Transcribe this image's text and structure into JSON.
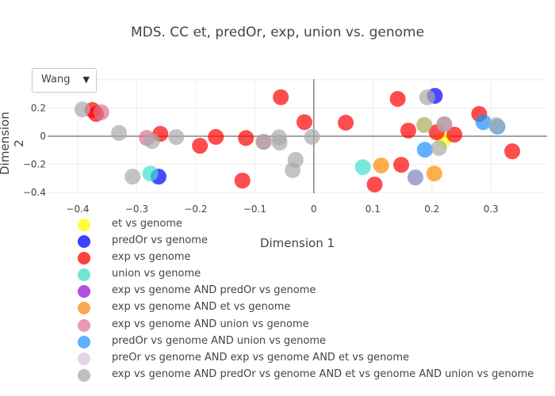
{
  "dropdown": {
    "selected": "Wang",
    "caret": "▼"
  },
  "chart_data": {
    "type": "scatter",
    "title": "MDS. CC et, predOr, exp, union vs. genome",
    "xlabel": "Dimension 1",
    "ylabel": "Dimension 2",
    "xlim": [
      -0.451,
      0.395
    ],
    "ylim": [
      -0.405,
      0.405
    ],
    "xticks": [
      -0.4,
      -0.3,
      -0.2,
      -0.1,
      0,
      0.1,
      0.2,
      0.3
    ],
    "xtick_labels": [
      "−0.4",
      "−0.3",
      "−0.2",
      "−0.1",
      "0",
      "0.1",
      "0.2",
      "0.3"
    ],
    "yticks": [
      -0.4,
      -0.2,
      0,
      0.2
    ],
    "ytick_labels": [
      "−0.4",
      "−0.2",
      "0",
      "0.2"
    ],
    "grid": true,
    "legend_position": "bottom-left",
    "series": [
      {
        "name": "et vs genome",
        "color": "#ffff00",
        "legend_color": "#ffff40",
        "points": [
          [
            0.187,
            0.08
          ],
          [
            0.219,
            -0.028
          ]
        ]
      },
      {
        "name": "predOr vs genome",
        "color": "#0000ff",
        "legend_color": "#4040ff",
        "points": [
          [
            -0.263,
            -0.287
          ],
          [
            0.205,
            0.287
          ]
        ]
      },
      {
        "name": "exp vs genome",
        "color": "#ff0000",
        "legend_color": "#ff4040",
        "points": [
          [
            -0.375,
            0.186
          ],
          [
            -0.369,
            0.158
          ],
          [
            -0.26,
            0.017
          ],
          [
            -0.193,
            -0.068
          ],
          [
            -0.166,
            -0.005
          ],
          [
            -0.115,
            -0.013
          ],
          [
            -0.121,
            -0.315
          ],
          [
            -0.056,
            0.277
          ],
          [
            -0.016,
            0.1
          ],
          [
            0.054,
            0.096
          ],
          [
            0.142,
            0.265
          ],
          [
            0.16,
            0.04
          ],
          [
            0.208,
            0.028
          ],
          [
            0.238,
            0.011
          ],
          [
            0.148,
            -0.203
          ],
          [
            0.103,
            -0.343
          ],
          [
            0.28,
            0.158
          ],
          [
            0.336,
            -0.107
          ]
        ]
      },
      {
        "name": "union vs genome",
        "color": "#40e0d0",
        "legend_color": "#70e4d8",
        "points": [
          [
            -0.277,
            -0.265
          ],
          [
            0.083,
            -0.22
          ]
        ]
      },
      {
        "name": "exp vs genome AND predOr vs genome",
        "color": "#a020f0",
        "legend_color": "#b050e0",
        "points": []
      },
      {
        "name": "exp vs genome AND et vs genome",
        "color": "#ff8c00",
        "legend_color": "#ffa850",
        "points": [
          [
            0.114,
            -0.208
          ],
          [
            0.204,
            -0.265
          ]
        ]
      },
      {
        "name": "exp vs genome AND union vs genome",
        "color": "#db7093",
        "legend_color": "#e89ab0",
        "points": [
          [
            -0.36,
            0.17
          ],
          [
            -0.283,
            -0.012
          ],
          [
            -0.085,
            -0.04
          ],
          [
            0.221,
            0.085
          ]
        ]
      },
      {
        "name": "predOr vs genome AND union vs genome",
        "color": "#1e90ff",
        "legend_color": "#60b0ff",
        "points": [
          [
            0.188,
            -0.096
          ],
          [
            0.287,
            0.1
          ],
          [
            0.311,
            0.068
          ]
        ]
      },
      {
        "name": "preOr vs genome AND exp vs genome AND et vs genome",
        "color": "#d8bfd8",
        "legend_color": "#e4d4e8",
        "points": []
      },
      {
        "name": "exp vs genome AND predOr vs genome AND et vs genome AND union vs genome",
        "color": "#a9a9a9",
        "legend_color": "#c0c0c0",
        "points": [
          [
            -0.392,
            0.19
          ],
          [
            -0.33,
            0.023
          ],
          [
            -0.274,
            -0.034
          ],
          [
            -0.233,
            -0.006
          ],
          [
            -0.307,
            -0.287
          ],
          [
            -0.085,
            -0.04
          ],
          [
            -0.059,
            -0.008
          ],
          [
            -0.058,
            -0.045
          ],
          [
            -0.003,
            -0.005
          ],
          [
            -0.031,
            -0.168
          ],
          [
            -0.036,
            -0.241
          ],
          [
            0.187,
            0.08
          ],
          [
            0.192,
            0.276
          ],
          [
            0.221,
            0.085
          ],
          [
            0.212,
            -0.084
          ],
          [
            0.309,
            0.079
          ]
        ]
      },
      {
        "name": "lavender-point",
        "color": "#8080c0",
        "legend_color": null,
        "hidden_in_legend": true,
        "points": [
          [
            0.172,
            -0.293
          ]
        ]
      }
    ]
  }
}
